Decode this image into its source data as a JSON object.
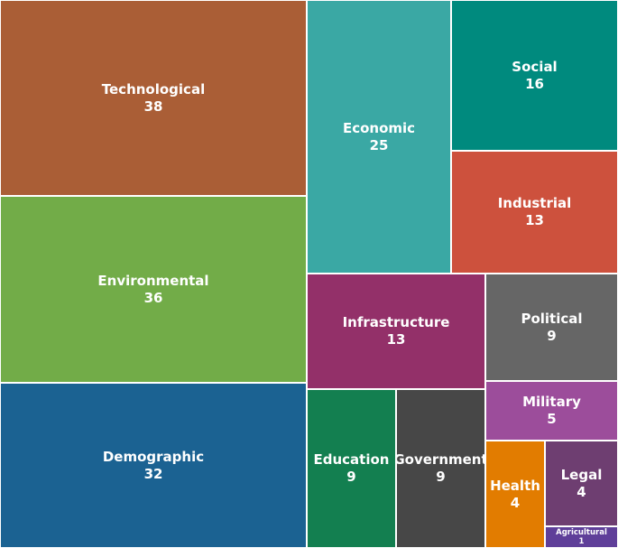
{
  "chart_data": {
    "type": "treemap",
    "title": "",
    "items": [
      {
        "label": "Technological",
        "value": 38,
        "color": "#aa5e36"
      },
      {
        "label": "Environmental",
        "value": 36,
        "color": "#72ac48"
      },
      {
        "label": "Demographic",
        "value": 32,
        "color": "#1b6292"
      },
      {
        "label": "Economic",
        "value": 25,
        "color": "#3aa8a4"
      },
      {
        "label": "Social",
        "value": 16,
        "color": "#008a7e"
      },
      {
        "label": "Industrial",
        "value": 13,
        "color": "#cd513d"
      },
      {
        "label": "Infrastructure",
        "value": 13,
        "color": "#933069"
      },
      {
        "label": "Political",
        "value": 9,
        "color": "#666666"
      },
      {
        "label": "Education",
        "value": 9,
        "color": "#137f50"
      },
      {
        "label": "Government",
        "value": 9,
        "color": "#474747"
      },
      {
        "label": "Military",
        "value": 5,
        "color": "#9c4d9b"
      },
      {
        "label": "Health",
        "value": 4,
        "color": "#e27c00"
      },
      {
        "label": "Legal",
        "value": 4,
        "color": "#6e3e71"
      },
      {
        "label": "Agricultural",
        "value": 1,
        "color": "#5f3f99"
      }
    ]
  }
}
